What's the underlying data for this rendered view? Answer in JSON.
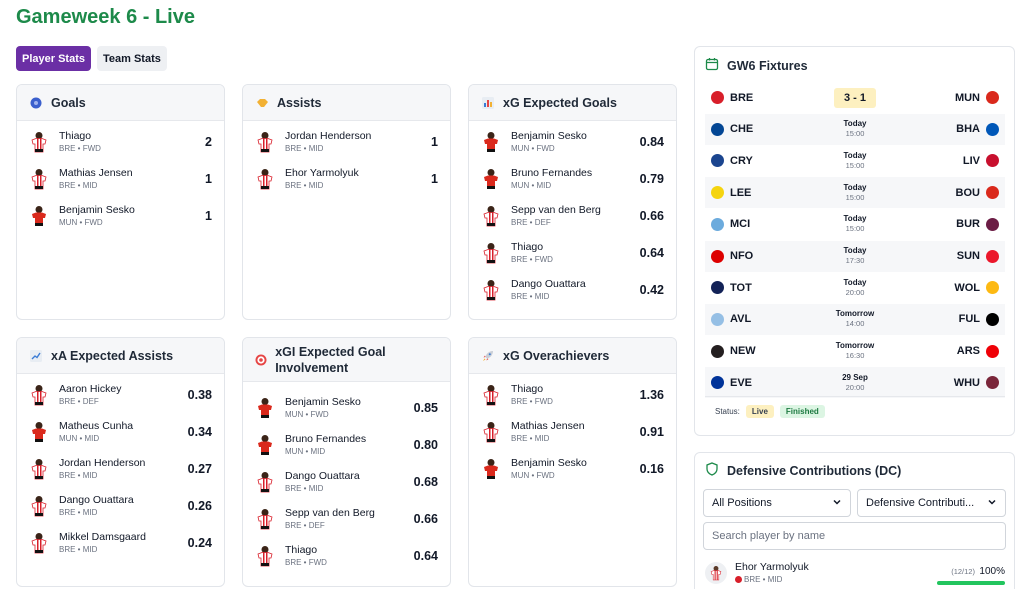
{
  "page_title": "Gameweek 6 - Live",
  "tabs": [
    {
      "label": "Player Stats",
      "active": true
    },
    {
      "label": "Team Stats",
      "active": false
    }
  ],
  "cards": [
    {
      "id": "goals",
      "title": "Goals",
      "icon": "soccer-ball-icon",
      "players": [
        {
          "name": "Thiago",
          "team": "BRE",
          "pos": "FWD",
          "value": "2",
          "kit": "bre"
        },
        {
          "name": "Mathias Jensen",
          "team": "BRE",
          "pos": "MID",
          "value": "1",
          "kit": "bre"
        },
        {
          "name": "Benjamin Sesko",
          "team": "MUN",
          "pos": "FWD",
          "value": "1",
          "kit": "mun"
        }
      ]
    },
    {
      "id": "assists",
      "title": "Assists",
      "icon": "handshake-icon",
      "players": [
        {
          "name": "Jordan Henderson",
          "team": "BRE",
          "pos": "MID",
          "value": "1",
          "kit": "bre"
        },
        {
          "name": "Ehor Yarmolyuk",
          "team": "BRE",
          "pos": "MID",
          "value": "1",
          "kit": "bre"
        }
      ]
    },
    {
      "id": "xg",
      "title": "xG Expected Goals",
      "icon": "bar-chart-icon",
      "players": [
        {
          "name": "Benjamin Sesko",
          "team": "MUN",
          "pos": "FWD",
          "value": "0.84",
          "kit": "mun"
        },
        {
          "name": "Bruno Fernandes",
          "team": "MUN",
          "pos": "MID",
          "value": "0.79",
          "kit": "mun"
        },
        {
          "name": "Sepp van den Berg",
          "team": "BRE",
          "pos": "DEF",
          "value": "0.66",
          "kit": "bre"
        },
        {
          "name": "Thiago",
          "team": "BRE",
          "pos": "FWD",
          "value": "0.64",
          "kit": "bre"
        },
        {
          "name": "Dango Ouattara",
          "team": "BRE",
          "pos": "MID",
          "value": "0.42",
          "kit": "bre"
        }
      ]
    },
    {
      "id": "xa",
      "title": "xA Expected Assists",
      "icon": "trend-chart-icon",
      "players": [
        {
          "name": "Aaron Hickey",
          "team": "BRE",
          "pos": "DEF",
          "value": "0.38",
          "kit": "bre"
        },
        {
          "name": "Matheus Cunha",
          "team": "MUN",
          "pos": "MID",
          "value": "0.34",
          "kit": "mun"
        },
        {
          "name": "Jordan Henderson",
          "team": "BRE",
          "pos": "MID",
          "value": "0.27",
          "kit": "bre"
        },
        {
          "name": "Dango Ouattara",
          "team": "BRE",
          "pos": "MID",
          "value": "0.26",
          "kit": "bre"
        },
        {
          "name": "Mikkel Damsgaard",
          "team": "BRE",
          "pos": "MID",
          "value": "0.24",
          "kit": "bre"
        }
      ]
    },
    {
      "id": "xgi",
      "title": "xGI Expected Goal Involvement",
      "icon": "target-icon",
      "players": [
        {
          "name": "Benjamin Sesko",
          "team": "MUN",
          "pos": "FWD",
          "value": "0.85",
          "kit": "mun"
        },
        {
          "name": "Bruno Fernandes",
          "team": "MUN",
          "pos": "MID",
          "value": "0.80",
          "kit": "mun"
        },
        {
          "name": "Dango Ouattara",
          "team": "BRE",
          "pos": "MID",
          "value": "0.68",
          "kit": "bre"
        },
        {
          "name": "Sepp van den Berg",
          "team": "BRE",
          "pos": "DEF",
          "value": "0.66",
          "kit": "bre"
        },
        {
          "name": "Thiago",
          "team": "BRE",
          "pos": "FWD",
          "value": "0.64",
          "kit": "bre"
        }
      ]
    },
    {
      "id": "xgo",
      "title": "xG Overachievers",
      "icon": "rocket-icon",
      "players": [
        {
          "name": "Thiago",
          "team": "BRE",
          "pos": "FWD",
          "value": "1.36",
          "kit": "bre"
        },
        {
          "name": "Mathias Jensen",
          "team": "BRE",
          "pos": "MID",
          "value": "0.91",
          "kit": "bre"
        },
        {
          "name": "Benjamin Sesko",
          "team": "MUN",
          "pos": "FWD",
          "value": "0.16",
          "kit": "mun"
        }
      ]
    }
  ],
  "fixtures": {
    "title": "GW6 Fixtures",
    "rows": [
      {
        "home": "BRE",
        "away": "MUN",
        "score": "3 - 1",
        "home_color": "#d81f2a",
        "away_color": "#da291c"
      },
      {
        "home": "CHE",
        "away": "BHA",
        "day": "Today",
        "time": "15:00",
        "home_color": "#034694",
        "away_color": "#0057b8"
      },
      {
        "home": "CRY",
        "away": "LIV",
        "day": "Today",
        "time": "15:00",
        "home_color": "#1b458f",
        "away_color": "#c8102e"
      },
      {
        "home": "LEE",
        "away": "BOU",
        "day": "Today",
        "time": "15:00",
        "home_color": "#f5d40f",
        "away_color": "#da291c"
      },
      {
        "home": "MCI",
        "away": "BUR",
        "day": "Today",
        "time": "15:00",
        "home_color": "#6cabdd",
        "away_color": "#6c1d45"
      },
      {
        "home": "NFO",
        "away": "SUN",
        "day": "Today",
        "time": "17:30",
        "home_color": "#dd0000",
        "away_color": "#eb172b"
      },
      {
        "home": "TOT",
        "away": "WOL",
        "day": "Today",
        "time": "20:00",
        "home_color": "#132257",
        "away_color": "#fdb913"
      },
      {
        "home": "AVL",
        "away": "FUL",
        "day": "Tomorrow",
        "time": "14:00",
        "home_color": "#95bfe5",
        "away_color": "#000000"
      },
      {
        "home": "NEW",
        "away": "ARS",
        "day": "Tomorrow",
        "time": "16:30",
        "home_color": "#241f20",
        "away_color": "#ef0107"
      },
      {
        "home": "EVE",
        "away": "WHU",
        "day": "29 Sep",
        "time": "20:00",
        "home_color": "#003399",
        "away_color": "#7a263a"
      }
    ],
    "status_label": "Status:",
    "status_live": "Live",
    "status_finished": "Finished"
  },
  "dc": {
    "title": "Defensive Contributions (DC)",
    "position_select": "All Positions",
    "metric_select": "Defensive Contributi...",
    "search_placeholder": "Search player by name",
    "player": {
      "name": "Ehor Yarmolyuk",
      "team": "BRE",
      "pos": "MID",
      "count": "(12/12)",
      "pct": "100%",
      "fill": 1.0
    }
  },
  "colors": {
    "accent_green": "#1d8a4a",
    "tab_active": "#6b2fa5",
    "bre_red": "#d81f2a",
    "mun_red": "#da291c"
  }
}
